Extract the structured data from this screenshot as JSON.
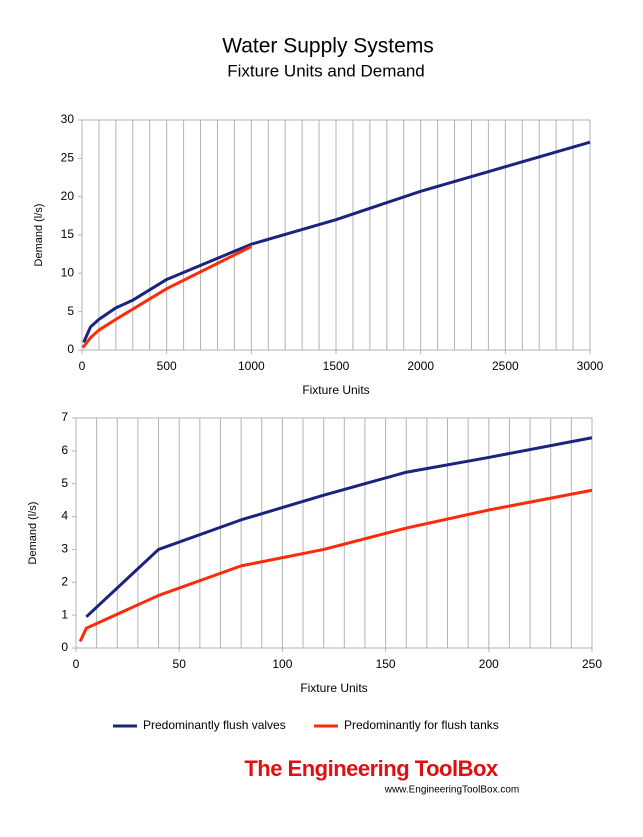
{
  "title": "Water Supply Systems",
  "subtitle": "Fixture Units and Demand",
  "brand": "The Engineering ToolBox",
  "url": "www.EngineeringToolBox.com",
  "chart_data": [
    {
      "type": "line",
      "xlabel": "Fixture Units",
      "ylabel": "Demand (l/s)",
      "xlim": [
        0,
        3000
      ],
      "xticks": [
        0,
        500,
        1000,
        1500,
        2000,
        2500,
        3000
      ],
      "xgrid": [
        0,
        100,
        200,
        300,
        400,
        500,
        600,
        700,
        800,
        900,
        1000,
        1100,
        1200,
        1300,
        1400,
        1500,
        1600,
        1700,
        1800,
        1900,
        2000,
        2100,
        2200,
        2300,
        2400,
        2500,
        2600,
        2700,
        2800,
        2900,
        3000
      ],
      "ylim": [
        0,
        30
      ],
      "yticks": [
        0,
        5,
        10,
        15,
        20,
        25,
        30
      ],
      "series": [
        {
          "name": "Predominantly flush valves",
          "color": "#1a237e",
          "x": [
            10,
            50,
            100,
            200,
            300,
            500,
            1000,
            1500,
            2000,
            3000
          ],
          "values": [
            1,
            3,
            4,
            5.5,
            6.5,
            9.2,
            13.8,
            17,
            20.7,
            27.1
          ]
        },
        {
          "name": "Predominantly for flush tanks",
          "color": "#ff2a0a",
          "x": [
            5,
            50,
            100,
            200,
            500,
            1000
          ],
          "values": [
            0.3,
            1.6,
            2.6,
            4,
            8,
            13.5
          ]
        }
      ]
    },
    {
      "type": "line",
      "xlabel": "Fixture Units",
      "ylabel": "Demand (l/s)",
      "xlim": [
        0,
        250
      ],
      "xticks": [
        0,
        50,
        100,
        150,
        200,
        250
      ],
      "xgrid": [
        0,
        10,
        20,
        30,
        40,
        50,
        60,
        70,
        80,
        90,
        100,
        110,
        120,
        130,
        140,
        150,
        160,
        170,
        180,
        190,
        200,
        210,
        220,
        230,
        240,
        250
      ],
      "ylim": [
        0,
        7
      ],
      "yticks": [
        0,
        1,
        2,
        3,
        4,
        5,
        6,
        7
      ],
      "series": [
        {
          "color": "#1a237e",
          "x": [
            5,
            40,
            80,
            120,
            160,
            200,
            250
          ],
          "values": [
            0.95,
            3.0,
            3.9,
            4.65,
            5.35,
            5.8,
            6.4
          ]
        },
        {
          "color": "#ff2a0a",
          "x": [
            2,
            5,
            40,
            80,
            120,
            160,
            200,
            250
          ],
          "values": [
            0.2,
            0.6,
            1.6,
            2.5,
            3.0,
            3.65,
            4.2,
            4.8
          ]
        }
      ]
    }
  ]
}
